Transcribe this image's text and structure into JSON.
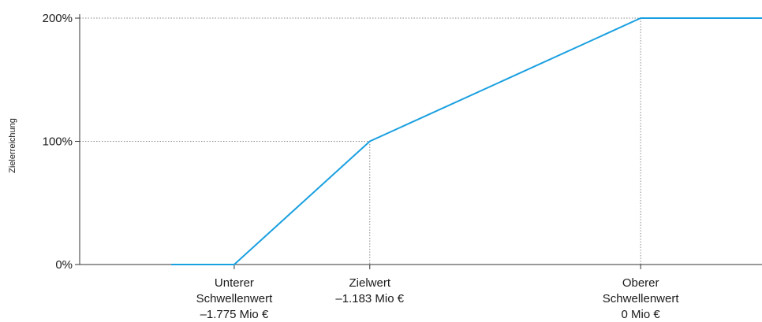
{
  "chart_data": {
    "type": "line",
    "ylabel": "Zielerreichung",
    "ylim": [
      0,
      200
    ],
    "yticks": [
      {
        "value": 0,
        "label": "0%"
      },
      {
        "value": 100,
        "label": "100%"
      },
      {
        "value": 200,
        "label": "200%"
      }
    ],
    "xlim": [
      -2.45,
      0.53
    ],
    "grid": "dotted reference lines at 100% and 200% and at the labeled x positions",
    "xticks": [
      {
        "value": -1.775,
        "lines": [
          "Unterer",
          "Schwellenwert",
          "–1.775 Mio €"
        ]
      },
      {
        "value": -1.183,
        "lines": [
          "Zielwert",
          "–1.183 Mio €"
        ]
      },
      {
        "value": 0,
        "lines": [
          "Oberer",
          "Schwellenwert",
          "0 Mio €"
        ]
      }
    ],
    "series": [
      {
        "color": "#1aa0e0",
        "x": [
          -2.05,
          -1.775,
          -1.183,
          0,
          0.53
        ],
        "y": [
          0,
          0,
          100,
          200,
          200
        ]
      }
    ],
    "reference_lines": [
      {
        "y": 100,
        "x_to": -1.183
      },
      {
        "y": 200,
        "x_to": 0
      }
    ],
    "colors": {
      "line": "#1aa0e0",
      "axis": "#333333",
      "grid": "#888888",
      "text": "#1a1a1a"
    }
  }
}
